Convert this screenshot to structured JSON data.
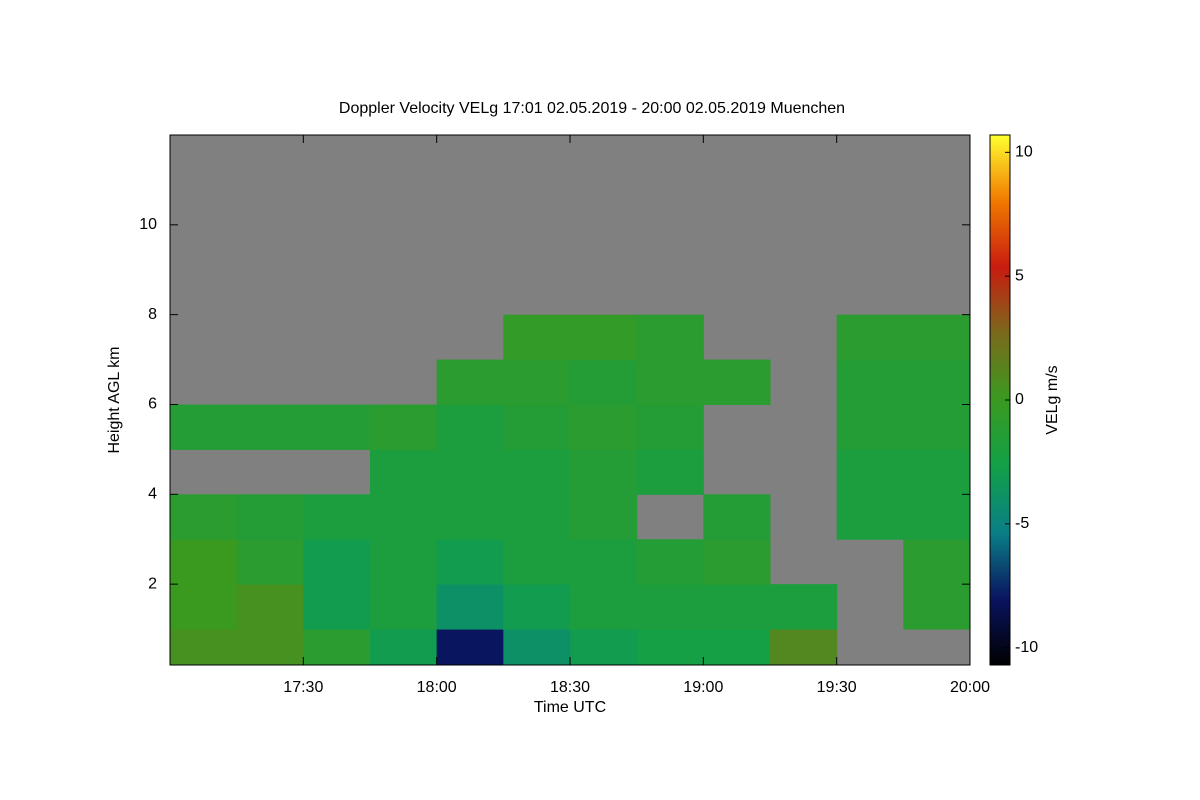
{
  "chart_data": {
    "type": "heatmap",
    "title": "Doppler Velocity VELg   17:01 02.05.2019 - 20:00 02.05.2019 Muenchen",
    "x_label": "Time UTC",
    "y_label": "Height AGL km",
    "colorbar_label": "VELg m/s",
    "x": [
      17.125,
      17.375,
      17.625,
      17.875,
      18.125,
      18.375,
      18.625,
      18.875,
      19.125,
      19.375,
      19.625,
      19.875
    ],
    "y": [
      0.5,
      1.5,
      2.5,
      3.5,
      4.5,
      5.5,
      6.5,
      7.5,
      8.5,
      9.5,
      10.5,
      11.5
    ],
    "z": [
      [
        0.5,
        0.5,
        -1,
        -3,
        -8,
        -4,
        -3,
        -2.5,
        -2.5,
        1,
        null,
        null
      ],
      [
        0,
        0.5,
        -3,
        -2,
        -4,
        -3,
        -2,
        -2,
        -2,
        -2,
        null,
        -1
      ],
      [
        0,
        -1,
        -3,
        -2,
        -3,
        -2,
        -2,
        -1.5,
        -1,
        null,
        null,
        -1
      ],
      [
        -1,
        -1.5,
        -2,
        -2,
        -2,
        -2,
        -1.5,
        null,
        -1.5,
        null,
        -2,
        -2
      ],
      [
        null,
        null,
        null,
        -2,
        -2,
        -2,
        -1.5,
        -2,
        null,
        null,
        -2,
        -2
      ],
      [
        -1.5,
        -1.5,
        -1.5,
        -1,
        -2,
        -1.5,
        -1,
        -1.5,
        null,
        null,
        -1.5,
        -1.5
      ],
      [
        null,
        null,
        null,
        null,
        -1,
        -1,
        -1.5,
        -1,
        -1,
        null,
        -1.5,
        -1.5
      ],
      [
        null,
        null,
        null,
        null,
        null,
        -0.5,
        -0.5,
        -1,
        null,
        null,
        -1,
        -1
      ],
      [
        null,
        null,
        null,
        null,
        null,
        null,
        null,
        null,
        null,
        null,
        null,
        null
      ],
      [
        null,
        null,
        null,
        null,
        null,
        null,
        null,
        null,
        null,
        null,
        null,
        null
      ],
      [
        null,
        null,
        null,
        null,
        null,
        null,
        null,
        null,
        null,
        null,
        null,
        null
      ],
      [
        null,
        null,
        null,
        null,
        null,
        null,
        null,
        null,
        null,
        null,
        null,
        null
      ]
    ],
    "xlim": [
      17.0,
      20.0
    ],
    "xticks": [
      {
        "value": 17.5,
        "label": "17:30"
      },
      {
        "value": 18.0,
        "label": "18:00"
      },
      {
        "value": 18.5,
        "label": "18:30"
      },
      {
        "value": 19.0,
        "label": "19:00"
      },
      {
        "value": 19.5,
        "label": "19:30"
      },
      {
        "value": 20.0,
        "label": "20:00"
      }
    ],
    "ylim": [
      0.2,
      12
    ],
    "yticks": [
      2,
      4,
      6,
      8,
      10
    ],
    "zlim": [
      -10.7,
      10.7
    ],
    "zticks": [
      10,
      5,
      0,
      -5,
      -10
    ],
    "colorscale": [
      "#000000",
      "#0a1460",
      "#0a7f86",
      "#12a048",
      "#3a9a20",
      "#7a6a1c",
      "#c81c10",
      "#f07800",
      "#ffff30"
    ],
    "missing_color": "#808080"
  }
}
